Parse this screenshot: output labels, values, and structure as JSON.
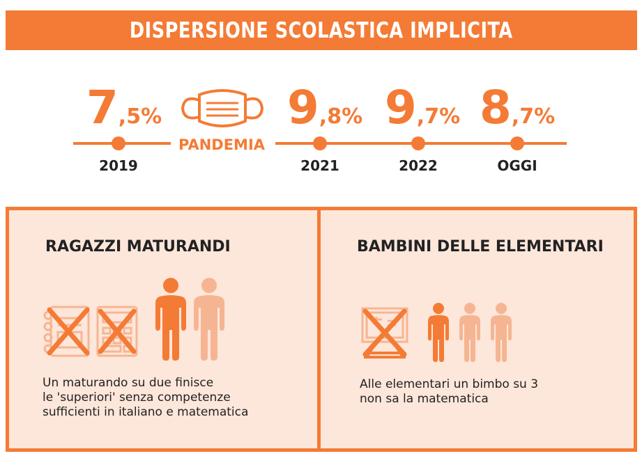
{
  "header": {
    "title": "DISPERSIONE SCOLASTICA IMPLICITA"
  },
  "timeline": {
    "points": [
      {
        "year": "2019",
        "value_int": "7",
        "value_dec": ",5%"
      },
      {
        "year": "2021",
        "value_int": "9",
        "value_dec": ",8%"
      },
      {
        "year": "2022",
        "value_int": "9",
        "value_dec": ",7%"
      },
      {
        "year": "OGGI",
        "value_int": "8",
        "value_dec": ",7%"
      }
    ],
    "pandemic_label": "PANDEMIA",
    "pandemic_icon": "face-mask-icon"
  },
  "panels": {
    "left": {
      "title": "RAGAZZI MATURANDI",
      "text_lines": [
        "Un maturando su due finisce",
        "le 'superiori' senza competenze",
        "sufficienti in italiano e matematica"
      ],
      "icons": [
        "crossed-notebook-icon",
        "crossed-calculator-icon",
        "person-icon",
        "person-icon"
      ]
    },
    "right": {
      "title": "BAMBINI DELLE ELEMENTARI",
      "text_lines": [
        "Alle elementari un bimbo su 3",
        "non sa la matematica"
      ],
      "icons": [
        "crossed-blackboard-icon",
        "child-icon",
        "child-icon",
        "child-icon"
      ]
    }
  },
  "colors": {
    "accent": "#f47b35",
    "accent_light": "#f6b592",
    "panel_bg": "#fde6da",
    "text": "#222222"
  }
}
